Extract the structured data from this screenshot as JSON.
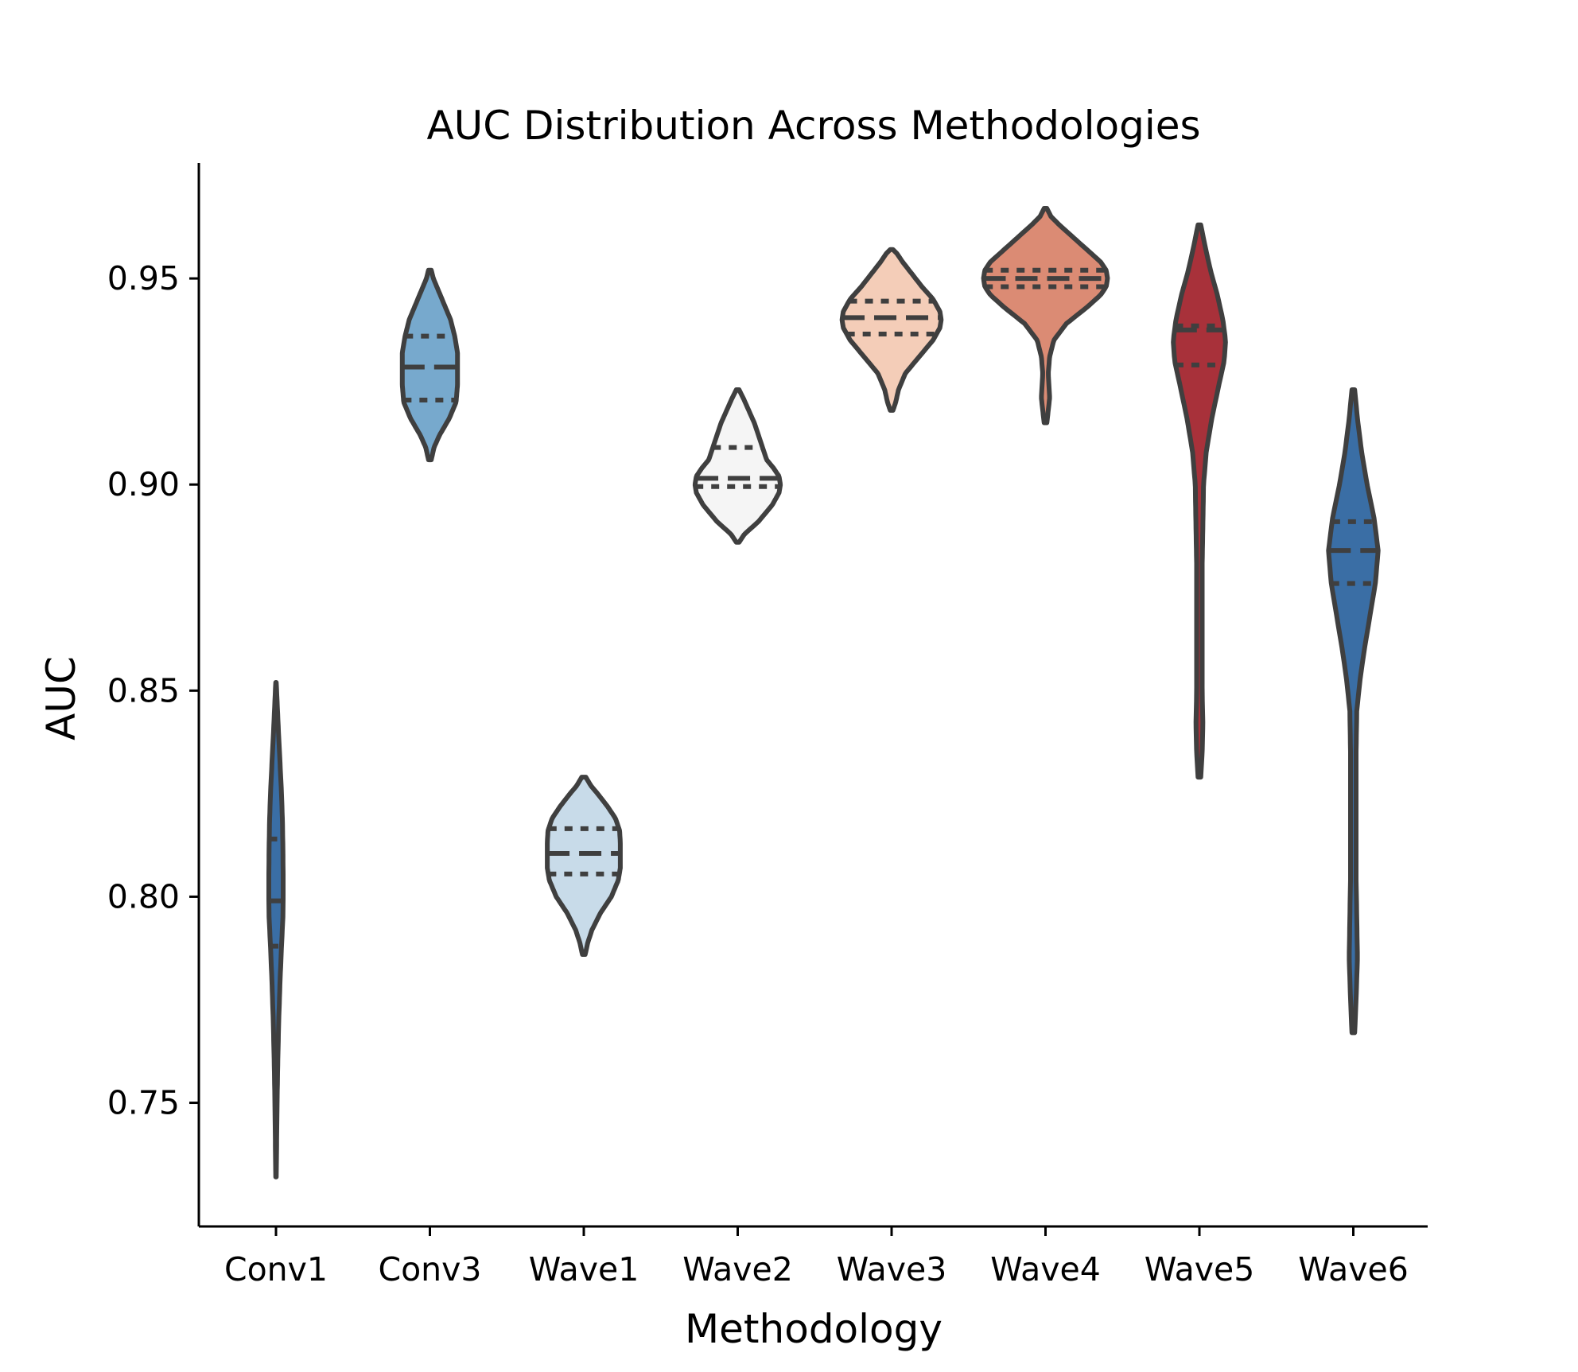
{
  "chart_data": {
    "type": "violin",
    "title": "AUC Distribution Across Methodologies",
    "xlabel": "Methodology",
    "ylabel": "AUC",
    "ylim": [
      0.72,
      0.978
    ],
    "yticks": [
      0.75,
      0.8,
      0.85,
      0.9,
      0.95
    ],
    "ytick_labels": [
      "0.75",
      "0.80",
      "0.85",
      "0.90",
      "0.95"
    ],
    "grid": false,
    "inner": "quartile",
    "categories": [
      "Conv1",
      "Conv3",
      "Wave1",
      "Wave2",
      "Wave3",
      "Wave4",
      "Wave5",
      "Wave6"
    ],
    "violins": [
      {
        "name": "Conv1",
        "color": "#3a6ea5",
        "min": 0.732,
        "max": 0.852,
        "q1": 0.788,
        "median": 0.799,
        "q3": 0.814,
        "profile": [
          [
            0.732,
            0.002
          ],
          [
            0.738,
            0.004
          ],
          [
            0.745,
            0.006
          ],
          [
            0.752,
            0.009
          ],
          [
            0.76,
            0.013
          ],
          [
            0.77,
            0.02
          ],
          [
            0.78,
            0.03
          ],
          [
            0.788,
            0.04
          ],
          [
            0.795,
            0.05
          ],
          [
            0.8,
            0.052
          ],
          [
            0.805,
            0.052
          ],
          [
            0.812,
            0.05
          ],
          [
            0.818,
            0.047
          ],
          [
            0.825,
            0.04
          ],
          [
            0.832,
            0.03
          ],
          [
            0.84,
            0.018
          ],
          [
            0.846,
            0.01
          ],
          [
            0.852,
            0.002
          ]
        ]
      },
      {
        "name": "Conv3",
        "color": "#77a9cd",
        "min": 0.906,
        "max": 0.952,
        "q1": 0.9205,
        "median": 0.9285,
        "q3": 0.936,
        "profile": [
          [
            0.906,
            0.01
          ],
          [
            0.909,
            0.03
          ],
          [
            0.912,
            0.07
          ],
          [
            0.916,
            0.14
          ],
          [
            0.92,
            0.19
          ],
          [
            0.924,
            0.2
          ],
          [
            0.928,
            0.2
          ],
          [
            0.932,
            0.2
          ],
          [
            0.936,
            0.18
          ],
          [
            0.94,
            0.15
          ],
          [
            0.944,
            0.1
          ],
          [
            0.948,
            0.05
          ],
          [
            0.95,
            0.025
          ],
          [
            0.952,
            0.01
          ]
        ]
      },
      {
        "name": "Wave1",
        "color": "#c8dbe9",
        "min": 0.786,
        "max": 0.829,
        "q1": 0.8055,
        "median": 0.8105,
        "q3": 0.8165,
        "profile": [
          [
            0.786,
            0.01
          ],
          [
            0.789,
            0.03
          ],
          [
            0.792,
            0.06
          ],
          [
            0.796,
            0.12
          ],
          [
            0.8,
            0.2
          ],
          [
            0.804,
            0.25
          ],
          [
            0.807,
            0.265
          ],
          [
            0.81,
            0.265
          ],
          [
            0.813,
            0.265
          ],
          [
            0.816,
            0.26
          ],
          [
            0.819,
            0.23
          ],
          [
            0.822,
            0.17
          ],
          [
            0.825,
            0.1
          ],
          [
            0.827,
            0.05
          ],
          [
            0.829,
            0.015
          ]
        ]
      },
      {
        "name": "Wave2",
        "color": "#f5f5f5",
        "min": 0.886,
        "max": 0.923,
        "q1": 0.8995,
        "median": 0.9015,
        "q3": 0.909,
        "profile": [
          [
            0.886,
            0.01
          ],
          [
            0.888,
            0.05
          ],
          [
            0.891,
            0.15
          ],
          [
            0.895,
            0.25
          ],
          [
            0.898,
            0.3
          ],
          [
            0.9,
            0.31
          ],
          [
            0.902,
            0.3
          ],
          [
            0.904,
            0.26
          ],
          [
            0.906,
            0.21
          ],
          [
            0.909,
            0.18
          ],
          [
            0.912,
            0.15
          ],
          [
            0.915,
            0.12
          ],
          [
            0.918,
            0.08
          ],
          [
            0.921,
            0.04
          ],
          [
            0.923,
            0.01
          ]
        ]
      },
      {
        "name": "Wave3",
        "color": "#f4cdb8",
        "min": 0.918,
        "max": 0.957,
        "q1": 0.9365,
        "median": 0.9405,
        "q3": 0.9445,
        "profile": [
          [
            0.918,
            0.01
          ],
          [
            0.92,
            0.03
          ],
          [
            0.923,
            0.05
          ],
          [
            0.927,
            0.1
          ],
          [
            0.931,
            0.2
          ],
          [
            0.935,
            0.3
          ],
          [
            0.938,
            0.35
          ],
          [
            0.94,
            0.36
          ],
          [
            0.942,
            0.35
          ],
          [
            0.945,
            0.3
          ],
          [
            0.948,
            0.22
          ],
          [
            0.951,
            0.15
          ],
          [
            0.954,
            0.08
          ],
          [
            0.956,
            0.04
          ],
          [
            0.957,
            0.01
          ]
        ]
      },
      {
        "name": "Wave4",
        "color": "#db8b74",
        "min": 0.915,
        "max": 0.967,
        "q1": 0.948,
        "median": 0.95,
        "q3": 0.952,
        "profile": [
          [
            0.915,
            0.01
          ],
          [
            0.918,
            0.02
          ],
          [
            0.921,
            0.03
          ],
          [
            0.924,
            0.025
          ],
          [
            0.927,
            0.02
          ],
          [
            0.931,
            0.03
          ],
          [
            0.935,
            0.06
          ],
          [
            0.939,
            0.15
          ],
          [
            0.943,
            0.3
          ],
          [
            0.946,
            0.4
          ],
          [
            0.948,
            0.44
          ],
          [
            0.95,
            0.45
          ],
          [
            0.952,
            0.44
          ],
          [
            0.954,
            0.4
          ],
          [
            0.957,
            0.3
          ],
          [
            0.96,
            0.2
          ],
          [
            0.963,
            0.1
          ],
          [
            0.965,
            0.04
          ],
          [
            0.967,
            0.01
          ]
        ]
      },
      {
        "name": "Wave5",
        "color": "#a8313a",
        "min": 0.829,
        "max": 0.963,
        "q1": 0.929,
        "median": 0.9375,
        "q3": 0.9385,
        "profile": [
          [
            0.829,
            0.01
          ],
          [
            0.835,
            0.02
          ],
          [
            0.842,
            0.025
          ],
          [
            0.85,
            0.02
          ],
          [
            0.86,
            0.02
          ],
          [
            0.87,
            0.02
          ],
          [
            0.88,
            0.02
          ],
          [
            0.89,
            0.025
          ],
          [
            0.9,
            0.03
          ],
          [
            0.908,
            0.05
          ],
          [
            0.916,
            0.09
          ],
          [
            0.924,
            0.14
          ],
          [
            0.93,
            0.18
          ],
          [
            0.935,
            0.19
          ],
          [
            0.94,
            0.17
          ],
          [
            0.946,
            0.13
          ],
          [
            0.952,
            0.08
          ],
          [
            0.958,
            0.04
          ],
          [
            0.963,
            0.01
          ]
        ]
      },
      {
        "name": "Wave6",
        "color": "#3a6ea5",
        "min": 0.767,
        "max": 0.923,
        "q1": 0.876,
        "median": 0.884,
        "q3": 0.891,
        "profile": [
          [
            0.767,
            0.01
          ],
          [
            0.775,
            0.02
          ],
          [
            0.785,
            0.03
          ],
          [
            0.795,
            0.025
          ],
          [
            0.805,
            0.02
          ],
          [
            0.815,
            0.02
          ],
          [
            0.825,
            0.02
          ],
          [
            0.835,
            0.02
          ],
          [
            0.845,
            0.025
          ],
          [
            0.853,
            0.05
          ],
          [
            0.86,
            0.08
          ],
          [
            0.868,
            0.12
          ],
          [
            0.876,
            0.16
          ],
          [
            0.884,
            0.18
          ],
          [
            0.892,
            0.15
          ],
          [
            0.9,
            0.1
          ],
          [
            0.908,
            0.06
          ],
          [
            0.916,
            0.03
          ],
          [
            0.923,
            0.01
          ]
        ]
      }
    ]
  }
}
